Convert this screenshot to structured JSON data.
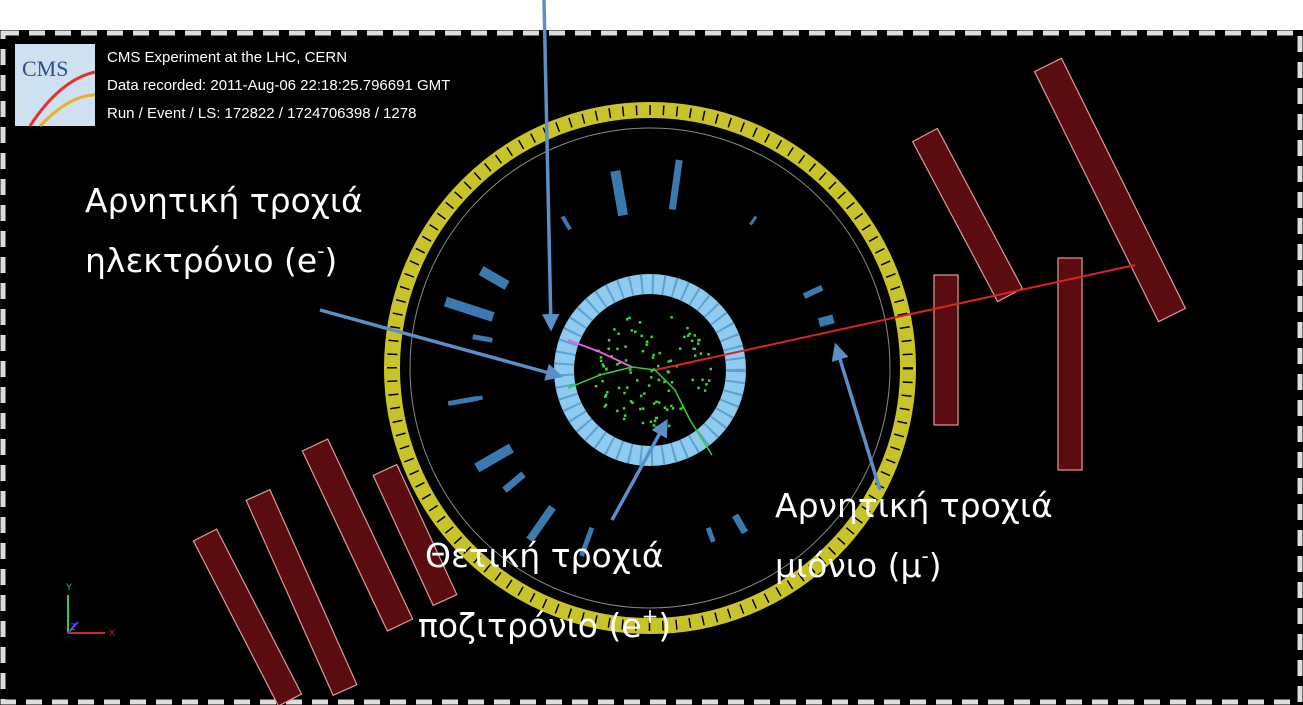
{
  "header": {
    "logo": "CMS",
    "lines": [
      "CMS Experiment at the LHC, CERN",
      "Data recorded: 2011-Aug-06 22:18:25.796691 GMT",
      "Run / Event / LS: 172822 / 1724706398 / 1278"
    ]
  },
  "axes": {
    "y": "Y",
    "x": "X",
    "z": "Z"
  },
  "annotations": [
    {
      "line1": "Αρνητική τροχιά",
      "line2": "ηλεκτρόνιο (e",
      "sup": "-",
      "close": ")"
    },
    {
      "line1": "Θετική τροχιά",
      "line2": "ποζιτρόνιο (e",
      "sup": "+",
      "close": ")"
    },
    {
      "line1": "Αρνητική τροχιά",
      "line2": "μιόνιο (μ",
      "sup": "-",
      "close": ")"
    }
  ]
}
